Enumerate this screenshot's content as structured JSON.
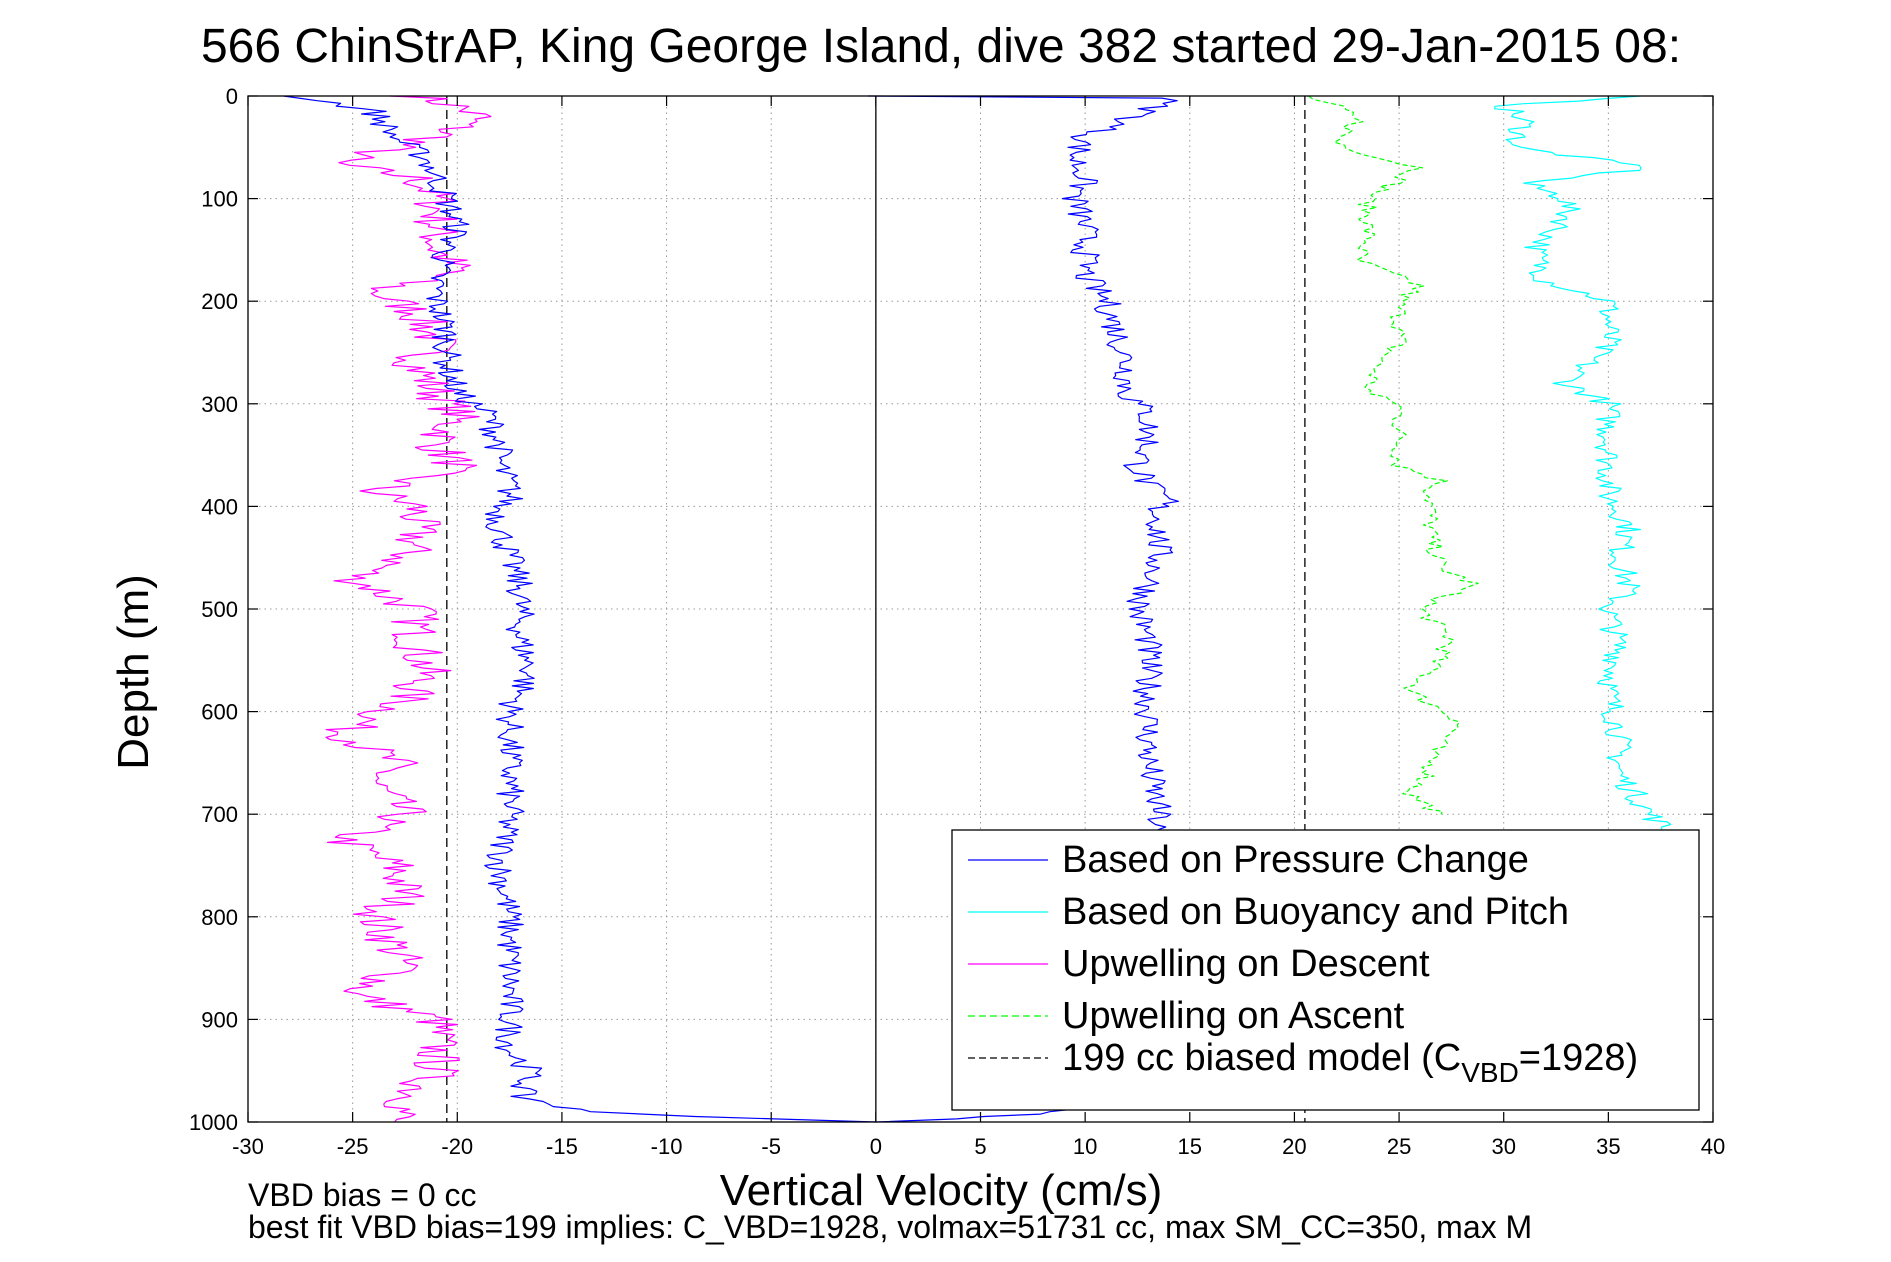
{
  "chart_data": {
    "type": "line",
    "title": "566 ChinStrAP, King George Island, dive 382 started 29-Jan-2015 08:",
    "xlabel": "Vertical Velocity (cm/s)",
    "ylabel": "Depth (m)",
    "xlim": [
      -30,
      40
    ],
    "ylim": [
      0,
      1000
    ],
    "y_reversed": true,
    "grid": true,
    "xticks": [
      -30,
      -25,
      -20,
      -15,
      -10,
      -5,
      0,
      5,
      10,
      15,
      20,
      25,
      30,
      35,
      40
    ],
    "yticks": [
      0,
      100,
      200,
      300,
      400,
      500,
      600,
      700,
      800,
      900,
      1000
    ],
    "legend_location": "bottom-right",
    "reference_lines": [
      {
        "orientation": "vertical",
        "x": 0,
        "style": "solid",
        "color": "#000000"
      },
      {
        "orientation": "vertical",
        "x": -20.5,
        "style": "dashed",
        "color": "#000000"
      },
      {
        "orientation": "vertical",
        "x": 20.5,
        "style": "dashed",
        "color": "#000000"
      }
    ],
    "series": [
      {
        "name": "Based on Pressure Change",
        "color": "#0000ff",
        "style": "solid",
        "depth": [
          0,
          2,
          15,
          40,
          60,
          80,
          100,
          130,
          150,
          175,
          200,
          230,
          260,
          290,
          310,
          340,
          360,
          380,
          395,
          400,
          420,
          450,
          480,
          500,
          530,
          560,
          600,
          650,
          700,
          750,
          800,
          850,
          900,
          930,
          950,
          975,
          990,
          997,
          1000
        ],
        "descent_velocity": [
          -28.5,
          -27,
          -24,
          -23,
          -21.5,
          -21,
          -20.5,
          -20,
          -20.5,
          -21,
          -21,
          -20.5,
          -20.5,
          -20,
          -18.5,
          -18,
          -18,
          -17.5,
          -17.5,
          -18,
          -18,
          -17.5,
          -17,
          -17,
          -17,
          -16.5,
          -17.5,
          -17.5,
          -17.5,
          -18,
          -17.5,
          -17.5,
          -17.5,
          -17.5,
          -16.5,
          -17,
          -14,
          -5,
          0
        ],
        "ascent_velocity": [
          0,
          14,
          13,
          10,
          9.5,
          10,
          9.5,
          10,
          10,
          10,
          11,
          11.5,
          12,
          12,
          13,
          13,
          12.5,
          13,
          14,
          13.5,
          13.5,
          13.5,
          13,
          12.5,
          13,
          13,
          13,
          13,
          13.5,
          13,
          13.5,
          13.5,
          13.5,
          13,
          13,
          12,
          9,
          4,
          0
        ]
      },
      {
        "name": "Based on Buoyancy and Pitch",
        "color": "#00ffff",
        "style": "solid",
        "depth": [
          0,
          10,
          25,
          50,
          70,
          85,
          100,
          120,
          150,
          180,
          200,
          240,
          280,
          300,
          330,
          360,
          390,
          420,
          450,
          480,
          500,
          540,
          580,
          620,
          660,
          700,
          720
        ],
        "velocity": [
          36,
          30,
          31,
          30.5,
          37,
          31,
          33,
          33,
          31.5,
          32,
          35,
          35,
          33,
          35,
          35,
          35,
          35,
          36,
          35.5,
          36,
          35,
          35.5,
          35,
          35.5,
          35.5,
          37,
          38
        ]
      },
      {
        "name": "Upwelling on Descent",
        "color": "#ff00ff",
        "style": "solid",
        "depth": [
          0,
          10,
          20,
          40,
          65,
          80,
          100,
          130,
          150,
          170,
          190,
          210,
          240,
          260,
          290,
          310,
          340,
          360,
          385,
          400,
          430,
          450,
          470,
          500,
          530,
          560,
          590,
          620,
          650,
          670,
          700,
          725,
          750,
          780,
          800,
          830,
          850,
          875,
          900,
          930,
          950,
          970,
          1000
        ],
        "velocity": [
          -22,
          -20,
          -19,
          -21,
          -26,
          -22,
          -21,
          -21,
          -21,
          -20,
          -24,
          -22,
          -21,
          -22,
          -21,
          -20,
          -21,
          -20,
          -24,
          -22,
          -22,
          -22.5,
          -25,
          -22,
          -22,
          -21.5,
          -22.5,
          -25.5,
          -23,
          -24,
          -22.5,
          -25.5,
          -23,
          -22.5,
          -24,
          -23,
          -22.5,
          -25,
          -21,
          -21,
          -21,
          -22,
          -23
        ]
      },
      {
        "name": "Upwelling on Ascent",
        "color": "#00ff00",
        "style": "dashed",
        "depth": [
          0,
          10,
          25,
          45,
          60,
          70,
          100,
          120,
          140,
          160,
          185,
          200,
          240,
          260,
          290,
          300,
          330,
          360,
          375,
          385,
          400,
          430,
          460,
          475,
          500,
          530,
          560,
          580,
          610,
          640,
          660,
          680,
          700
        ],
        "velocity": [
          20.5,
          22,
          23,
          22,
          24,
          26,
          23.5,
          23.5,
          23.5,
          23,
          26,
          25,
          25,
          24,
          23.5,
          25,
          25,
          25,
          27,
          26.5,
          26.5,
          26.5,
          27,
          28.5,
          26,
          27.5,
          26.5,
          25.5,
          28,
          26.5,
          26.5,
          25.5,
          27
        ]
      },
      {
        "name": "199 cc biased model (C_VBD=1928)",
        "color": "#000000",
        "style": "dashed",
        "depth": [
          0,
          1000
        ],
        "descent_velocity": [
          -20.5,
          -20.5
        ],
        "ascent_velocity": [
          20.5,
          20.5
        ]
      }
    ],
    "legend": {
      "entries": [
        {
          "label": "Based on Pressure Change",
          "color": "#0000ff",
          "style": "solid"
        },
        {
          "label": "Based on Buoyancy and Pitch",
          "color": "#00ffff",
          "style": "solid"
        },
        {
          "label": "Upwelling on Descent",
          "color": "#ff00ff",
          "style": "solid"
        },
        {
          "label": "Upwelling on Ascent",
          "color": "#00ff00",
          "style": "dashed"
        },
        {
          "label_main": "199 cc biased model (C",
          "label_sub": "VBD",
          "label_tail": "=1928)",
          "color": "#000000",
          "style": "dashed"
        }
      ]
    },
    "annotations": {
      "vbd_bias": "VBD bias = 0 cc",
      "best_fit": "best fit VBD bias=199 implies: C_VBD=1928, volmax=51731 cc, max SM_CC=350, max M"
    }
  }
}
